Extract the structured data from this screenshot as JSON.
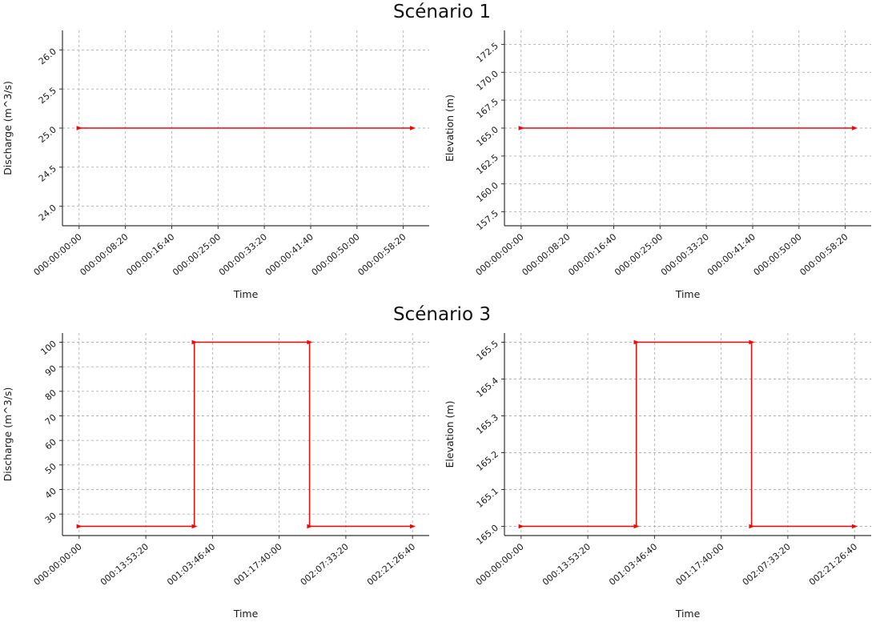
{
  "titles": {
    "s1": "Scénario 1",
    "s3": "Scénario 3"
  },
  "chart_data": [
    {
      "id": "scenario1-discharge",
      "scenario": "Scénario 1",
      "type": "line",
      "xlabel": "Time",
      "ylabel": "Discharge (m^3/s)",
      "line_color": "#ff0000",
      "grid": true,
      "xlim": [
        -180,
        3780
      ],
      "ylim": [
        23.75,
        26.25
      ],
      "x_tick_values": [
        0,
        500,
        1000,
        1500,
        2000,
        2500,
        3000,
        3500
      ],
      "x_tick_labels": [
        "000:00:00:00",
        "000:00:08:20",
        "000:00:16:40",
        "000:00:25:00",
        "000:00:33:20",
        "000:00:41:40",
        "000:00:50:00",
        "000:00:58:20"
      ],
      "y_tick_values": [
        24.0,
        24.5,
        25.0,
        25.5,
        26.0
      ],
      "y_tick_labels": [
        "24.0",
        "24.5",
        "25.0",
        "25.5",
        "26.0"
      ],
      "points": [
        [
          0,
          25
        ],
        [
          3600,
          25
        ]
      ]
    },
    {
      "id": "scenario1-elevation",
      "scenario": "Scénario 1",
      "type": "line",
      "xlabel": "Time",
      "ylabel": "Elevation (m)",
      "line_color": "#ff0000",
      "grid": true,
      "xlim": [
        -180,
        3780
      ],
      "ylim": [
        156.25,
        173.75
      ],
      "x_tick_values": [
        0,
        500,
        1000,
        1500,
        2000,
        2500,
        3000,
        3500
      ],
      "x_tick_labels": [
        "000:00:00:00",
        "000:00:08:20",
        "000:00:16:40",
        "000:00:25:00",
        "000:00:33:20",
        "000:00:41:40",
        "000:00:50:00",
        "000:00:58:20"
      ],
      "y_tick_values": [
        157.5,
        160.0,
        162.5,
        165.0,
        167.5,
        170.0,
        172.5
      ],
      "y_tick_labels": [
        "157.5",
        "160.0",
        "162.5",
        "165.0",
        "167.5",
        "170.0",
        "172.5"
      ],
      "points": [
        [
          0,
          165
        ],
        [
          3600,
          165
        ]
      ]
    },
    {
      "id": "scenario3-discharge",
      "scenario": "Scénario 3",
      "type": "line",
      "xlabel": "Time",
      "ylabel": "Discharge (m^3/s)",
      "line_color": "#ff0000",
      "grid": true,
      "xlim": [
        -12500,
        262500
      ],
      "ylim": [
        21.25,
        103.75
      ],
      "x_tick_values": [
        0,
        50000,
        100000,
        150000,
        200000,
        250000
      ],
      "x_tick_labels": [
        "000:00:00:00",
        "000:13:53:20",
        "001:03:46:40",
        "001:17:40:00",
        "002:07:33:20",
        "002:21:26:40"
      ],
      "y_tick_values": [
        30,
        40,
        50,
        60,
        70,
        80,
        90,
        100
      ],
      "y_tick_labels": [
        "30",
        "40",
        "50",
        "60",
        "70",
        "80",
        "90",
        "100"
      ],
      "points": [
        [
          0,
          25
        ],
        [
          86400,
          25
        ],
        [
          86400,
          100
        ],
        [
          172800,
          100
        ],
        [
          172800,
          25
        ],
        [
          250000,
          25
        ]
      ]
    },
    {
      "id": "scenario3-elevation",
      "scenario": "Scénario 3",
      "type": "line",
      "xlabel": "Time",
      "ylabel": "Elevation (m)",
      "line_color": "#ff0000",
      "grid": true,
      "xlim": [
        -12500,
        262500
      ],
      "ylim": [
        164.975,
        165.525
      ],
      "x_tick_values": [
        0,
        50000,
        100000,
        150000,
        200000,
        250000
      ],
      "x_tick_labels": [
        "000:00:00:00",
        "000:13:53:20",
        "001:03:46:40",
        "001:17:40:00",
        "002:07:33:20",
        "002:21:26:40"
      ],
      "y_tick_values": [
        165.0,
        165.1,
        165.2,
        165.3,
        165.4,
        165.5
      ],
      "y_tick_labels": [
        "165.0",
        "165.1",
        "165.2",
        "165.3",
        "165.4",
        "165.5"
      ],
      "points": [
        [
          0,
          165
        ],
        [
          86400,
          165
        ],
        [
          86400,
          165.5
        ],
        [
          172800,
          165.5
        ],
        [
          172800,
          165
        ],
        [
          250000,
          165
        ]
      ]
    }
  ]
}
